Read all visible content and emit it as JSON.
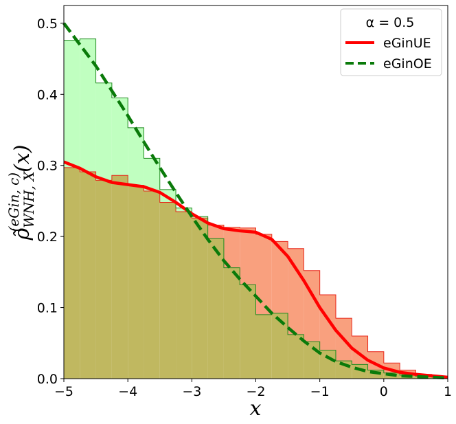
{
  "chart_data": {
    "type": "area",
    "xlabel": "x",
    "ylabel_main": "ρ̃",
    "ylabel_sup": "(eGin, c)",
    "ylabel_sub": "WNH, X",
    "ylabel_arg": "(x)",
    "xlim": [
      -5,
      1
    ],
    "ylim": [
      0,
      0.525
    ],
    "xticks": [
      -5,
      -4,
      -3,
      -2,
      -1,
      0,
      1
    ],
    "xtick_labels": [
      "−5",
      "−4",
      "−3",
      "−2",
      "−1",
      "0",
      "1"
    ],
    "yticks": [
      0.0,
      0.1,
      0.2,
      0.3,
      0.4,
      0.5
    ],
    "ytick_labels": [
      "0.0",
      "0.1",
      "0.2",
      "0.3",
      "0.4",
      "0.5"
    ],
    "legend": {
      "title": "α = 0.5",
      "position": "top-right"
    },
    "histograms": [
      {
        "name": "eGinUE histogram",
        "fill": "#f9a07e",
        "edge": "#e8261a",
        "bin_edges": [
          -5,
          -4.75,
          -4.5,
          -4.25,
          -4,
          -3.75,
          -3.5,
          -3.25,
          -3,
          -2.75,
          -2.5,
          -2.25,
          -2,
          -1.75,
          -1.5,
          -1.25,
          -1,
          -0.75,
          -0.5,
          -0.25,
          0,
          0.25,
          0.5,
          0.75,
          1
        ],
        "values": [
          0.297,
          0.291,
          0.279,
          0.286,
          0.272,
          0.264,
          0.248,
          0.235,
          0.226,
          0.216,
          0.213,
          0.212,
          0.203,
          0.193,
          0.183,
          0.152,
          0.118,
          0.085,
          0.06,
          0.038,
          0.022,
          0.012,
          0.006,
          0.003
        ]
      },
      {
        "name": "eGinOE histogram",
        "fill": "#c0ffc0",
        "edge": "#1f8a1f",
        "bin_edges": [
          -5,
          -4.75,
          -4.5,
          -4.25,
          -4,
          -3.75,
          -3.5,
          -3.25,
          -3,
          -2.75,
          -2.5,
          -2.25,
          -2,
          -1.75,
          -1.5,
          -1.25,
          -1,
          -0.75,
          -0.5,
          -0.25,
          0,
          0.25,
          0.5,
          0.75,
          1
        ],
        "values": [
          0.476,
          0.478,
          0.416,
          0.395,
          0.353,
          0.31,
          0.266,
          0.24,
          0.228,
          0.197,
          0.156,
          0.132,
          0.09,
          0.092,
          0.062,
          0.052,
          0.04,
          0.025,
          0.02,
          0.012,
          0.008,
          0.005,
          0.003,
          0.002
        ]
      }
    ],
    "overlap_color": "#c0b860",
    "series": [
      {
        "name": "eGinUE",
        "color": "#ff0000",
        "style": "solid",
        "x": [
          -5,
          -4.75,
          -4.5,
          -4.25,
          -4,
          -3.75,
          -3.5,
          -3.25,
          -3,
          -2.75,
          -2.5,
          -2.25,
          -2,
          -1.75,
          -1.5,
          -1.25,
          -1,
          -0.75,
          -0.5,
          -0.25,
          0,
          0.25,
          0.5,
          0.75,
          1
        ],
        "y": [
          0.305,
          0.296,
          0.284,
          0.276,
          0.273,
          0.27,
          0.262,
          0.248,
          0.232,
          0.219,
          0.211,
          0.208,
          0.206,
          0.196,
          0.172,
          0.138,
          0.1,
          0.068,
          0.043,
          0.026,
          0.015,
          0.009,
          0.006,
          0.004,
          0.002
        ]
      },
      {
        "name": "eGinOE",
        "color": "#0a7a0a",
        "style": "dashed",
        "x": [
          -5,
          -4.75,
          -4.5,
          -4.25,
          -4,
          -3.75,
          -3.5,
          -3.25,
          -3,
          -2.75,
          -2.5,
          -2.25,
          -2,
          -1.75,
          -1.5,
          -1.25,
          -1,
          -0.75,
          -0.5,
          -0.25,
          0,
          0.25,
          0.5,
          0.75,
          1
        ],
        "y": [
          0.5,
          0.47,
          0.44,
          0.405,
          0.37,
          0.333,
          0.297,
          0.262,
          0.228,
          0.196,
          0.166,
          0.14,
          0.116,
          0.092,
          0.072,
          0.053,
          0.036,
          0.024,
          0.016,
          0.01,
          0.007,
          0.004,
          0.003,
          0.002,
          0.001
        ]
      }
    ]
  }
}
